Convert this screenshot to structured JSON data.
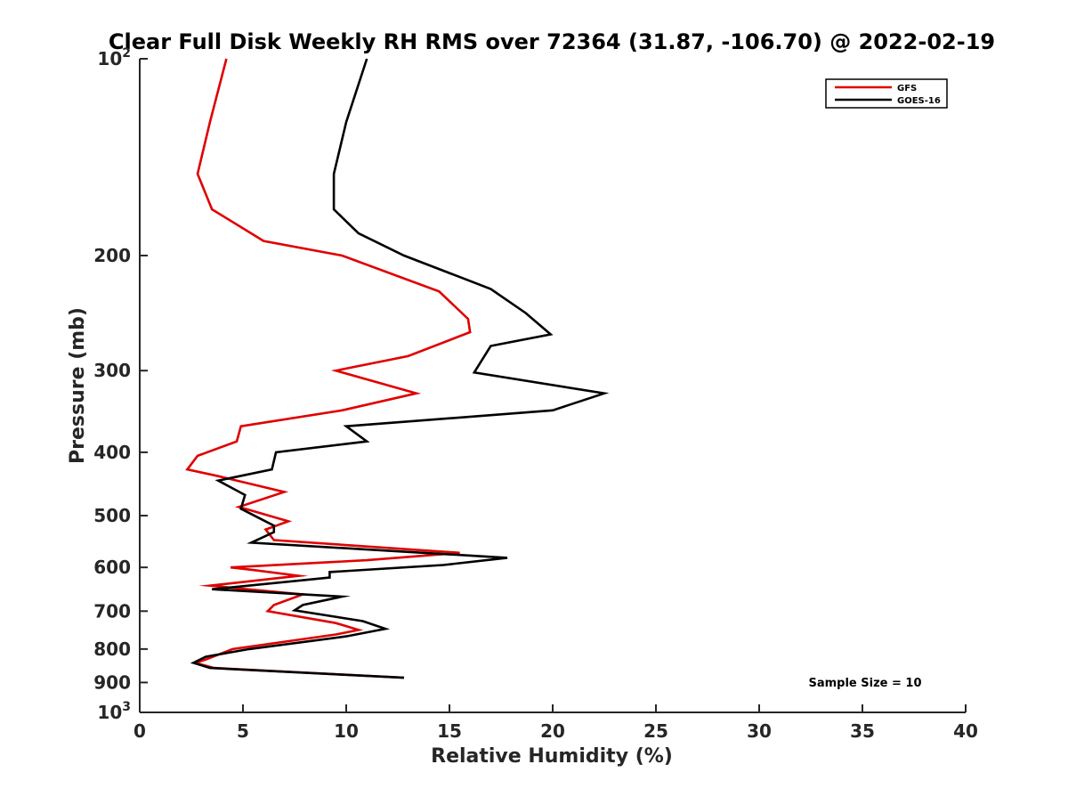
{
  "chart_data": {
    "type": "line",
    "title": "Clear Full Disk Weekly RH RMS over 72364 (31.87, -106.70) @ 2022-02-19",
    "xlabel": "Relative Humidity (%)",
    "ylabel": "Pressure (mb)",
    "xlim": [
      0,
      40
    ],
    "ylim": [
      100,
      1000
    ],
    "y_scale": "log",
    "y_reversed": true,
    "grid": false,
    "legend_position": "top-right",
    "x_ticks": [
      {
        "value": 0,
        "label": "0"
      },
      {
        "value": 5,
        "label": "5"
      },
      {
        "value": 10,
        "label": "10"
      },
      {
        "value": 15,
        "label": "15"
      },
      {
        "value": 20,
        "label": "20"
      },
      {
        "value": 25,
        "label": "25"
      },
      {
        "value": 30,
        "label": "30"
      },
      {
        "value": 35,
        "label": "35"
      },
      {
        "value": 40,
        "label": "40"
      }
    ],
    "y_ticks": [
      {
        "value": 100,
        "base": "10",
        "exp": "2"
      },
      {
        "value": 200,
        "label": "200"
      },
      {
        "value": 300,
        "label": "300"
      },
      {
        "value": 400,
        "label": "400"
      },
      {
        "value": 500,
        "label": "500"
      },
      {
        "value": 600,
        "label": "600"
      },
      {
        "value": 700,
        "label": "700"
      },
      {
        "value": 800,
        "label": "800"
      },
      {
        "value": 900,
        "label": "900"
      },
      {
        "value": 1000,
        "base": "10",
        "exp": "3"
      }
    ],
    "series": [
      {
        "name": "GFS",
        "color": "#e00000",
        "points": [
          [
            4.2,
            100
          ],
          [
            3.4,
            125
          ],
          [
            2.8,
            150
          ],
          [
            3.5,
            170
          ],
          [
            6.0,
            190
          ],
          [
            9.8,
            200
          ],
          [
            14.5,
            227
          ],
          [
            15.9,
            250
          ],
          [
            16.0,
            262
          ],
          [
            13.0,
            285
          ],
          [
            9.5,
            300
          ],
          [
            13.4,
            325
          ],
          [
            9.8,
            345
          ],
          [
            4.9,
            365
          ],
          [
            4.7,
            385
          ],
          [
            2.8,
            405
          ],
          [
            2.3,
            425
          ],
          [
            3.8,
            435
          ],
          [
            7.0,
            460
          ],
          [
            4.8,
            485
          ],
          [
            7.2,
            510
          ],
          [
            6.1,
            525
          ],
          [
            6.5,
            545
          ],
          [
            15.5,
            570
          ],
          [
            11.0,
            585
          ],
          [
            4.4,
            600
          ],
          [
            5.4,
            605
          ],
          [
            7.7,
            618
          ],
          [
            3.4,
            640
          ],
          [
            7.9,
            660
          ],
          [
            6.5,
            685
          ],
          [
            6.2,
            700
          ],
          [
            9.5,
            730
          ],
          [
            10.6,
            748
          ],
          [
            9.5,
            760
          ],
          [
            4.5,
            800
          ],
          [
            3.2,
            830
          ],
          [
            2.7,
            840
          ],
          [
            3.6,
            855
          ],
          [
            12.8,
            885
          ]
        ]
      },
      {
        "name": "GOES-16",
        "color": "#000000",
        "points": [
          [
            11.0,
            100
          ],
          [
            10.0,
            125
          ],
          [
            9.4,
            150
          ],
          [
            9.4,
            170
          ],
          [
            10.6,
            185
          ],
          [
            12.8,
            200
          ],
          [
            17.0,
            225
          ],
          [
            18.7,
            245
          ],
          [
            19.9,
            264
          ],
          [
            17.0,
            275
          ],
          [
            16.2,
            302
          ],
          [
            22.5,
            325
          ],
          [
            20.0,
            345
          ],
          [
            10.0,
            365
          ],
          [
            11.0,
            385
          ],
          [
            6.6,
            400
          ],
          [
            6.4,
            425
          ],
          [
            3.8,
            442
          ],
          [
            5.1,
            465
          ],
          [
            4.9,
            488
          ],
          [
            6.5,
            518
          ],
          [
            6.5,
            530
          ],
          [
            5.4,
            550
          ],
          [
            17.8,
            580
          ],
          [
            14.7,
            595
          ],
          [
            9.2,
            610
          ],
          [
            9.2,
            622
          ],
          [
            3.5,
            648
          ],
          [
            9.8,
            665
          ],
          [
            7.9,
            685
          ],
          [
            7.5,
            698
          ],
          [
            10.8,
            725
          ],
          [
            11.9,
            745
          ],
          [
            10.0,
            765
          ],
          [
            5.3,
            800
          ],
          [
            3.2,
            822
          ],
          [
            2.6,
            840
          ],
          [
            3.4,
            855
          ],
          [
            12.8,
            885
          ]
        ]
      }
    ],
    "annotation": "Sample Size = 10"
  }
}
